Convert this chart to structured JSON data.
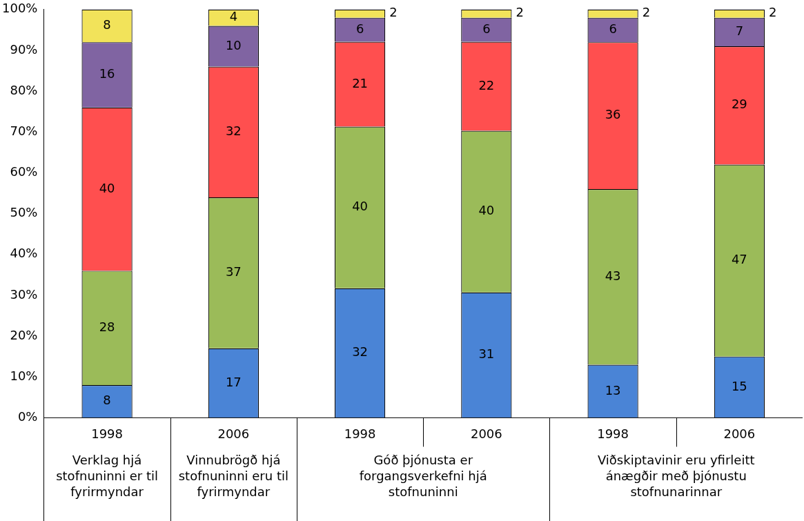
{
  "chart_data": {
    "type": "bar",
    "stacked": true,
    "categories": [
      "1998",
      "2006",
      "1998",
      "2006",
      "1998",
      "2006"
    ],
    "ylim": [
      0,
      100
    ],
    "yticks": [
      {
        "value": 0,
        "label": "0%"
      },
      {
        "value": 10,
        "label": "10%"
      },
      {
        "value": 20,
        "label": "20%"
      },
      {
        "value": 30,
        "label": "30%"
      },
      {
        "value": 40,
        "label": "40%"
      },
      {
        "value": 50,
        "label": "50%"
      },
      {
        "value": 60,
        "label": "60%"
      },
      {
        "value": 70,
        "label": "70%"
      },
      {
        "value": 80,
        "label": "80%"
      },
      {
        "value": 90,
        "label": "90%"
      },
      {
        "value": 100,
        "label": "100%"
      }
    ],
    "grid": false,
    "legend": false,
    "series": [
      {
        "color": "#4a84d6",
        "values": [
          8,
          17,
          31.7,
          30.7,
          13,
          15
        ],
        "value_labels": [
          "8",
          "17",
          "32",
          "31",
          "13",
          "15"
        ]
      },
      {
        "color": "#9bbb59",
        "values": [
          28,
          37,
          39.6,
          39.6,
          43,
          47
        ],
        "value_labels": [
          "28",
          "37",
          "40",
          "40",
          "43",
          "47"
        ]
      },
      {
        "color": "#ff4f4f",
        "values": [
          40,
          32,
          20.8,
          21.8,
          36,
          29
        ],
        "value_labels": [
          "40",
          "32",
          "21",
          "22",
          "36",
          "29"
        ]
      },
      {
        "color": "#8064a2",
        "values": [
          16,
          10,
          5.9,
          5.9,
          6,
          7
        ],
        "value_labels": [
          "16",
          "10",
          "6",
          "6",
          "6",
          "7"
        ]
      },
      {
        "color": "#f2e35a",
        "values": [
          8,
          4,
          2,
          2,
          2,
          2
        ],
        "value_labels": [
          "8",
          "4",
          "2",
          "2",
          "2",
          "2"
        ]
      }
    ],
    "annotations": [
      "Verklag hjá stofnuninni er til fyrirmyndar",
      "Vinnubrögð hjá stofnuninni eru til fyrirmyndar",
      "Góð þjónusta er forgangsverkefni hjá stofnuninni",
      "Viðskiptavinir eru yfirleitt ánægðir með þjónustu stofnunarinnar"
    ]
  }
}
